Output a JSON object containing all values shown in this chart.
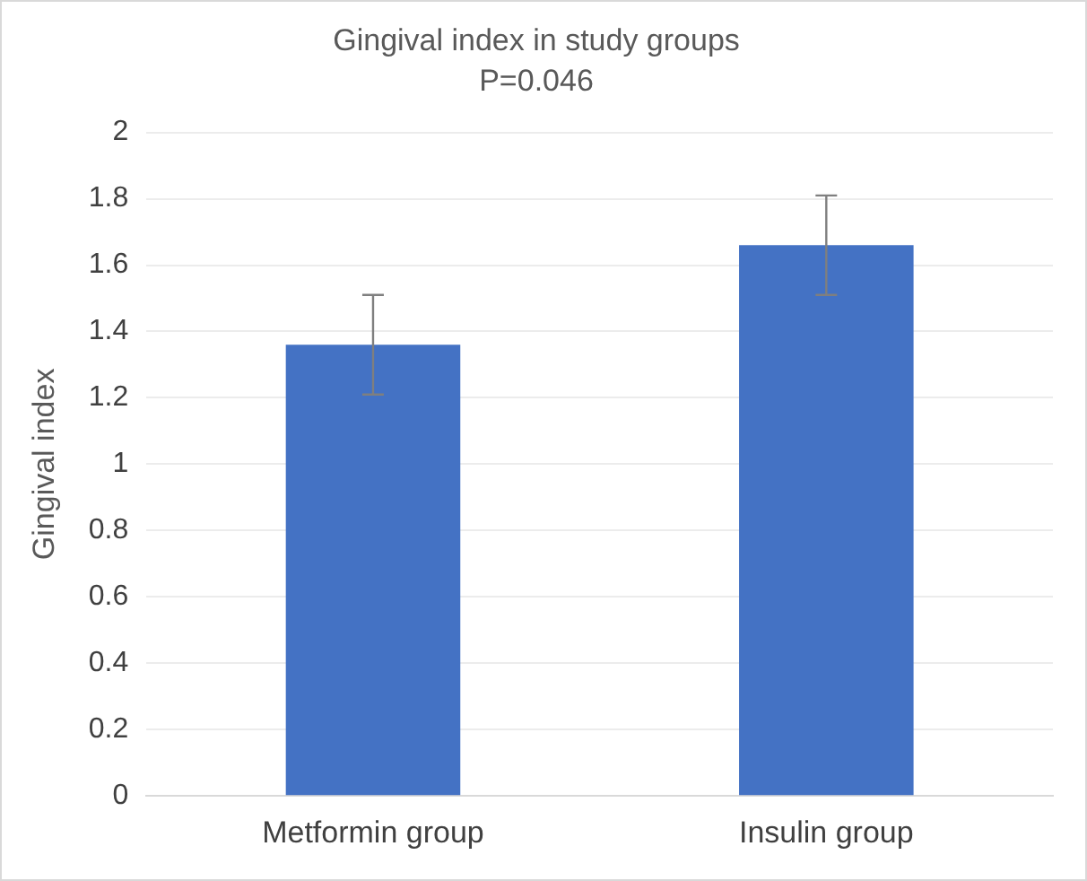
{
  "chart_data": {
    "type": "bar",
    "title": "Gingival index in study groups",
    "subtitle": "P=0.046",
    "ylabel": "Gingival index",
    "categories": [
      "Metformin group",
      "Insulin group"
    ],
    "values": [
      1.36,
      1.66
    ],
    "errors": [
      0.15,
      0.15
    ],
    "color": "#4472c4",
    "ylim": [
      0,
      2
    ],
    "yticks": [
      0,
      0.2,
      0.4,
      0.6,
      0.8,
      1,
      1.2,
      1.4,
      1.6,
      1.8,
      2
    ],
    "grid": "y",
    "legend": false
  }
}
